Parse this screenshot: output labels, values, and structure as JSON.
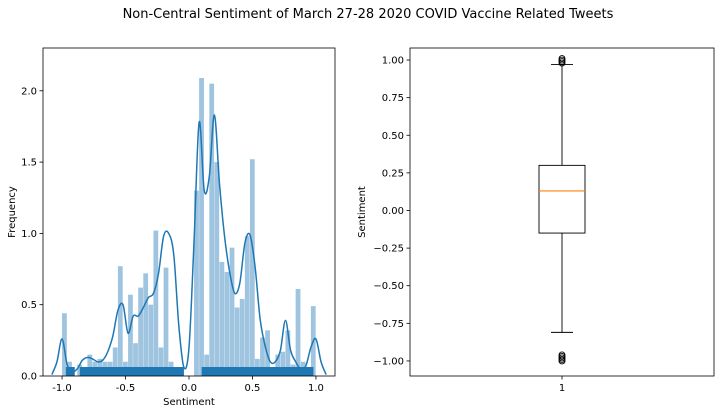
{
  "figure": {
    "title": "Non-Central Sentiment of March 27-28 2020 COVID Vaccine Related Tweets"
  },
  "chart_data": [
    {
      "type": "bar",
      "subtype": "histogram-with-kde-and-rug",
      "xlabel": "Sentiment",
      "ylabel": "Frequency",
      "xlim": [
        -1.15,
        1.15
      ],
      "ylim": [
        0,
        2.3
      ],
      "xticks": [
        -1.0,
        -0.5,
        0.0,
        0.5,
        1.0
      ],
      "xtick_labels": [
        "-1.0",
        "-0.5",
        "0.0",
        "0.5",
        "1.0"
      ],
      "yticks": [
        0.0,
        0.5,
        1.0,
        1.5,
        2.0
      ],
      "ytick_labels": [
        "0.0",
        "0.5",
        "1.0",
        "1.5",
        "2.0"
      ],
      "bin_width": 0.04,
      "bins_start": [
        -1.0,
        -0.96,
        -0.92,
        -0.88,
        -0.84,
        -0.8,
        -0.76,
        -0.72,
        -0.68,
        -0.64,
        -0.6,
        -0.56,
        -0.52,
        -0.48,
        -0.44,
        -0.4,
        -0.36,
        -0.32,
        -0.28,
        -0.24,
        -0.2,
        -0.16,
        -0.12,
        -0.08,
        -0.04,
        0.0,
        0.04,
        0.08,
        0.12,
        0.16,
        0.2,
        0.24,
        0.28,
        0.32,
        0.36,
        0.4,
        0.44,
        0.48,
        0.52,
        0.56,
        0.6,
        0.64,
        0.68,
        0.72,
        0.76,
        0.8,
        0.84,
        0.88,
        0.92,
        0.96
      ],
      "values": [
        0.44,
        0.1,
        0.0,
        0.08,
        0.05,
        0.15,
        0.1,
        0.12,
        0.1,
        0.1,
        0.2,
        0.77,
        0.1,
        0.57,
        0.23,
        0.62,
        0.72,
        0.5,
        1.02,
        0.2,
        0.76,
        0.1,
        0.0,
        0.0,
        0.0,
        0.0,
        1.3,
        2.09,
        0.15,
        2.05,
        1.5,
        0.8,
        0.73,
        0.9,
        0.48,
        0.54,
        0.98,
        1.52,
        0.12,
        0.27,
        0.32,
        0.06,
        0.15,
        0.17,
        0.32,
        0.08,
        0.61,
        0.1,
        0.0,
        0.49
      ],
      "kde": {
        "x": [
          -1.08,
          -1.04,
          -1.0,
          -0.96,
          -0.92,
          -0.88,
          -0.84,
          -0.8,
          -0.76,
          -0.72,
          -0.68,
          -0.64,
          -0.6,
          -0.56,
          -0.52,
          -0.48,
          -0.44,
          -0.4,
          -0.36,
          -0.32,
          -0.28,
          -0.24,
          -0.2,
          -0.16,
          -0.12,
          -0.08,
          -0.04,
          0.0,
          0.04,
          0.08,
          0.12,
          0.16,
          0.2,
          0.24,
          0.28,
          0.32,
          0.36,
          0.4,
          0.44,
          0.48,
          0.52,
          0.56,
          0.6,
          0.64,
          0.68,
          0.72,
          0.76,
          0.8,
          0.84,
          0.88,
          0.92,
          0.96,
          1.0,
          1.04,
          1.08
        ],
        "y": [
          0.01,
          0.1,
          0.26,
          0.08,
          0.03,
          0.05,
          0.11,
          0.13,
          0.12,
          0.1,
          0.11,
          0.17,
          0.28,
          0.46,
          0.5,
          0.3,
          0.42,
          0.42,
          0.48,
          0.55,
          0.58,
          0.72,
          0.98,
          1.0,
          0.85,
          0.35,
          0.06,
          0.2,
          0.95,
          1.78,
          1.3,
          1.4,
          1.83,
          1.35,
          0.98,
          0.73,
          0.58,
          0.65,
          0.93,
          0.99,
          0.77,
          0.4,
          0.21,
          0.1,
          0.1,
          0.18,
          0.39,
          0.18,
          0.1,
          0.05,
          0.07,
          0.2,
          0.26,
          0.1,
          0.01
        ],
        "color": "#1f77b4"
      },
      "rug_segments": [
        [
          -0.97,
          -0.9
        ],
        [
          -0.86,
          -0.04
        ],
        [
          0.1,
          0.98
        ]
      ],
      "hist_color": "#9ec4e0",
      "rug_color": "#1f77b4"
    },
    {
      "type": "boxplot",
      "ylabel": "Sentiment",
      "xtick_labels": [
        "1"
      ],
      "ylim": [
        -1.1,
        1.08
      ],
      "yticks": [
        -1.0,
        -0.75,
        -0.5,
        -0.25,
        0.0,
        0.25,
        0.5,
        0.75,
        1.0
      ],
      "ytick_labels": [
        "−1.00",
        "−0.75",
        "−0.50",
        "−0.25",
        "0.00",
        "0.25",
        "0.50",
        "0.75",
        "1.00"
      ],
      "whisker_low": -0.81,
      "q1": -0.15,
      "median": 0.13,
      "q3": 0.3,
      "whisker_high": 0.97,
      "outliers_high": [
        0.98,
        0.99,
        1.0,
        1.01
      ],
      "outliers_low": [
        -0.96,
        -0.97,
        -0.98,
        -0.99,
        -1.0
      ],
      "median_color": "#ff7f0e"
    }
  ]
}
